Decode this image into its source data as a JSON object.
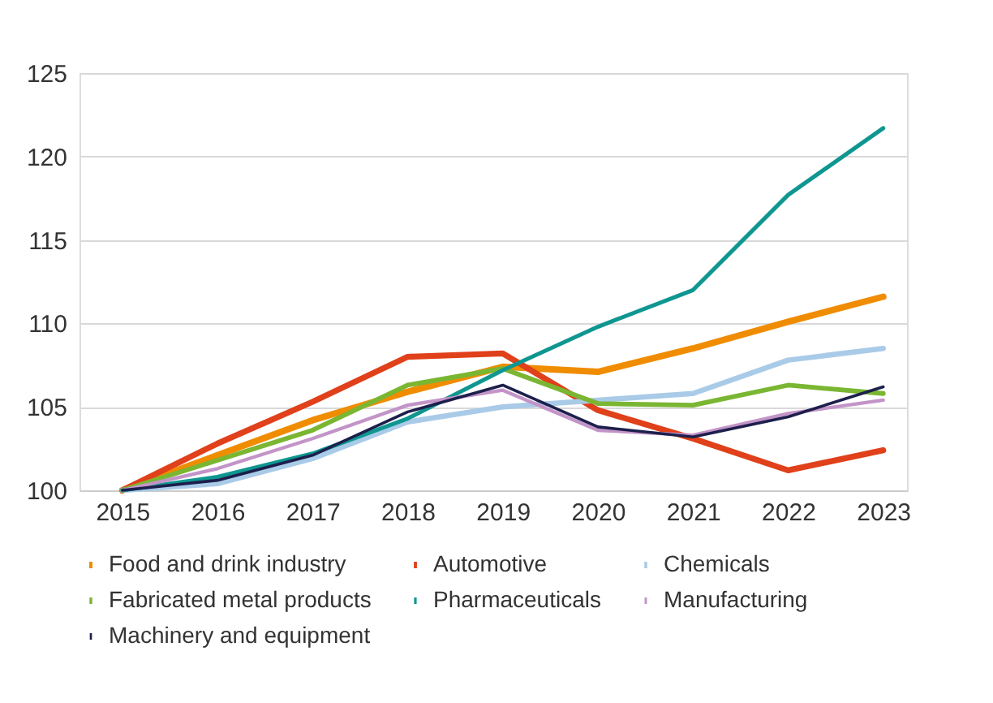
{
  "chart_data": {
    "type": "line",
    "categories": [
      "2015",
      "2016",
      "2017",
      "2018",
      "2019",
      "2020",
      "2021",
      "2022",
      "2023"
    ],
    "ylim": [
      100,
      125
    ],
    "yticks": [
      100,
      105,
      110,
      115,
      120,
      125
    ],
    "grid": "y",
    "legend": "bottom",
    "marker": "none",
    "line_style": "solid",
    "series": [
      {
        "name": "Food and drink industry",
        "color": "#f08c00",
        "values": [
          100,
          102.1,
          104.2,
          105.9,
          107.4,
          107.1,
          108.5,
          110.1,
          111.6
        ]
      },
      {
        "name": "Automotive",
        "color": "#e0401a",
        "values": [
          100,
          102.8,
          105.3,
          108.0,
          108.2,
          104.8,
          103.1,
          101.2,
          102.4
        ]
      },
      {
        "name": "Chemicals",
        "color": "#a9cbe8",
        "values": [
          100,
          100.4,
          101.9,
          104.1,
          105.0,
          105.4,
          105.8,
          107.8,
          108.5
        ]
      },
      {
        "name": "Fabricated metal products",
        "color": "#7ab632",
        "values": [
          100,
          101.8,
          103.6,
          106.3,
          107.3,
          105.2,
          105.1,
          106.3,
          105.8
        ]
      },
      {
        "name": "Pharmaceuticals",
        "color": "#0f9690",
        "values": [
          100,
          100.8,
          102.2,
          104.3,
          107.2,
          109.8,
          112.0,
          117.7,
          121.7
        ]
      },
      {
        "name": "Manufacturing",
        "color": "#c394c8",
        "values": [
          100,
          101.3,
          103.1,
          105.1,
          106.0,
          103.6,
          103.3,
          104.6,
          105.4
        ]
      },
      {
        "name": "Machinery and equipment",
        "color": "#1d1f4c",
        "values": [
          100,
          100.6,
          102.1,
          104.7,
          106.3,
          103.8,
          103.2,
          104.4,
          106.2
        ]
      }
    ]
  }
}
